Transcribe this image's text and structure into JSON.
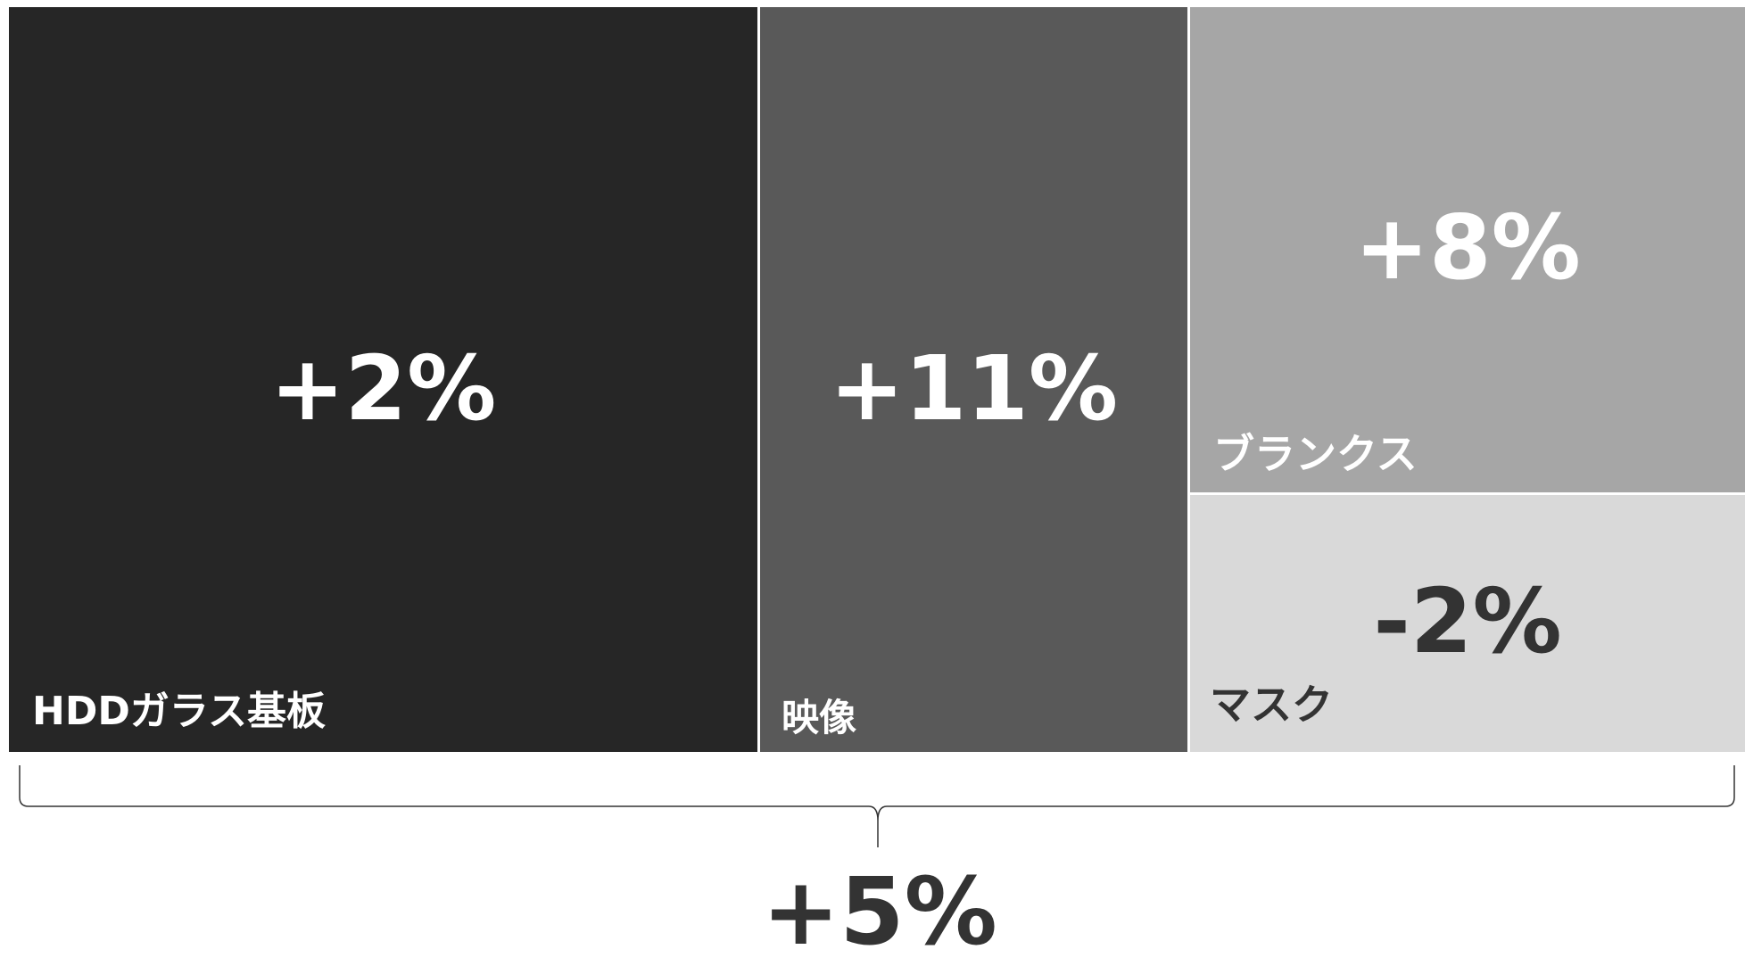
{
  "chart_data": {
    "type": "treemap",
    "items": [
      {
        "id": "hdd",
        "label": "HDDガラス基板",
        "value": "+2%",
        "fill": "#262626",
        "text_color": "#ffffff"
      },
      {
        "id": "video",
        "label": "映像",
        "value": "+11%",
        "fill": "#595959",
        "text_color": "#ffffff"
      },
      {
        "id": "blanks",
        "label": "ブランクス",
        "value": "+8%",
        "fill": "#a6a6a6",
        "text_color": "#ffffff"
      },
      {
        "id": "mask",
        "label": "マスク",
        "value": "-2%",
        "fill": "#d9d9d9",
        "text_color": "#333333"
      }
    ],
    "total": {
      "value": "+5%",
      "text_color": "#333333"
    }
  },
  "colors": {
    "background": "#ffffff",
    "brace": "#333333"
  }
}
